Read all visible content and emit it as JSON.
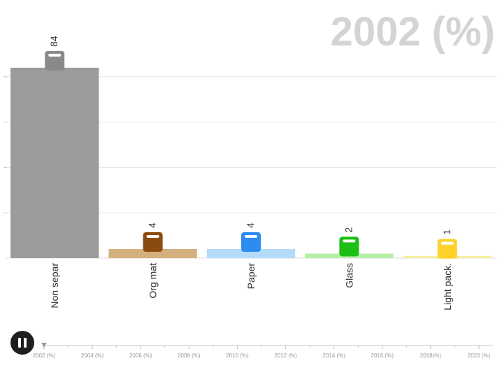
{
  "header": {
    "year_title": "2002 (%)"
  },
  "controls": {
    "play_state": "paused"
  },
  "chart_data": {
    "type": "bar",
    "title": "2002 (%)",
    "categories": [
      "Non separ",
      "Org mat",
      "Paper",
      "Glass",
      "Light pack."
    ],
    "values": [
      84,
      4,
      4,
      2,
      1
    ],
    "value_labels": [
      "84",
      "4",
      "4",
      "2",
      "1"
    ],
    "ylim": [
      0,
      100
    ],
    "grid": true,
    "bar_colors": [
      "#9b9b9b",
      "#d4b07e",
      "#b4dcfa",
      "#b6f0a8",
      "#f7ef9e"
    ],
    "marker_colors": [
      "#8a8a8a",
      "#8b4a0f",
      "#2d8cf0",
      "#1dbf14",
      "#fed22b"
    ]
  },
  "timeline": {
    "ticks": [
      "2002 (%)",
      "2004 (%)",
      "2006 (%)",
      "2008 (%)",
      "2010 (%)",
      "2012 (%)",
      "2014 (%)",
      "2016 (%)",
      "2018(%)",
      "2020 (%)"
    ],
    "current_index": 0
  }
}
